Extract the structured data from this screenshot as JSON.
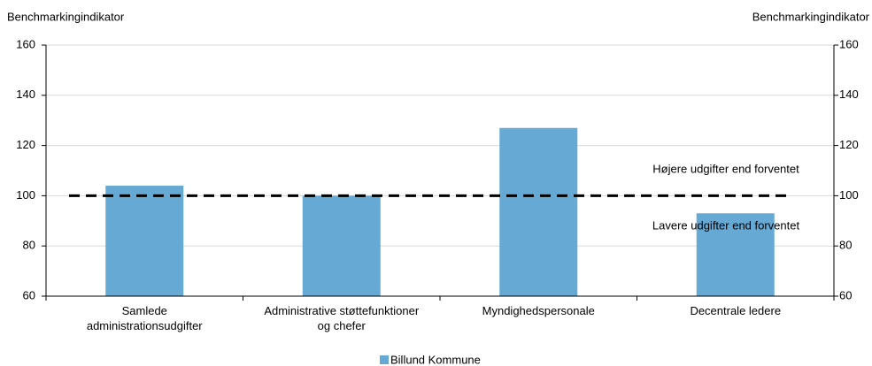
{
  "chart_data": {
    "type": "bar",
    "y_label": "Benchmarkingindikator",
    "y2_label": "Benchmarkingindikator",
    "categories": [
      "Samlede\nadministrationsudgifter",
      "Administrative støttefunktioner\nog chefer",
      "Myndighedspersonale",
      "Decentrale ledere"
    ],
    "series": [
      {
        "name": "Billund Kommune",
        "color": "#67a9d5",
        "values": [
          104,
          100,
          127,
          93
        ]
      }
    ],
    "ylim": [
      60,
      160
    ],
    "yticks": [
      60,
      80,
      100,
      120,
      140,
      160
    ],
    "y2lim": [
      60,
      160
    ],
    "y2ticks": [
      60,
      80,
      100,
      120,
      140,
      160
    ],
    "reference_line": 100,
    "annotations": [
      "Højere udgifter end forventet",
      "Lavere udgifter end forventet"
    ],
    "grid": true,
    "legend": "bottom"
  }
}
